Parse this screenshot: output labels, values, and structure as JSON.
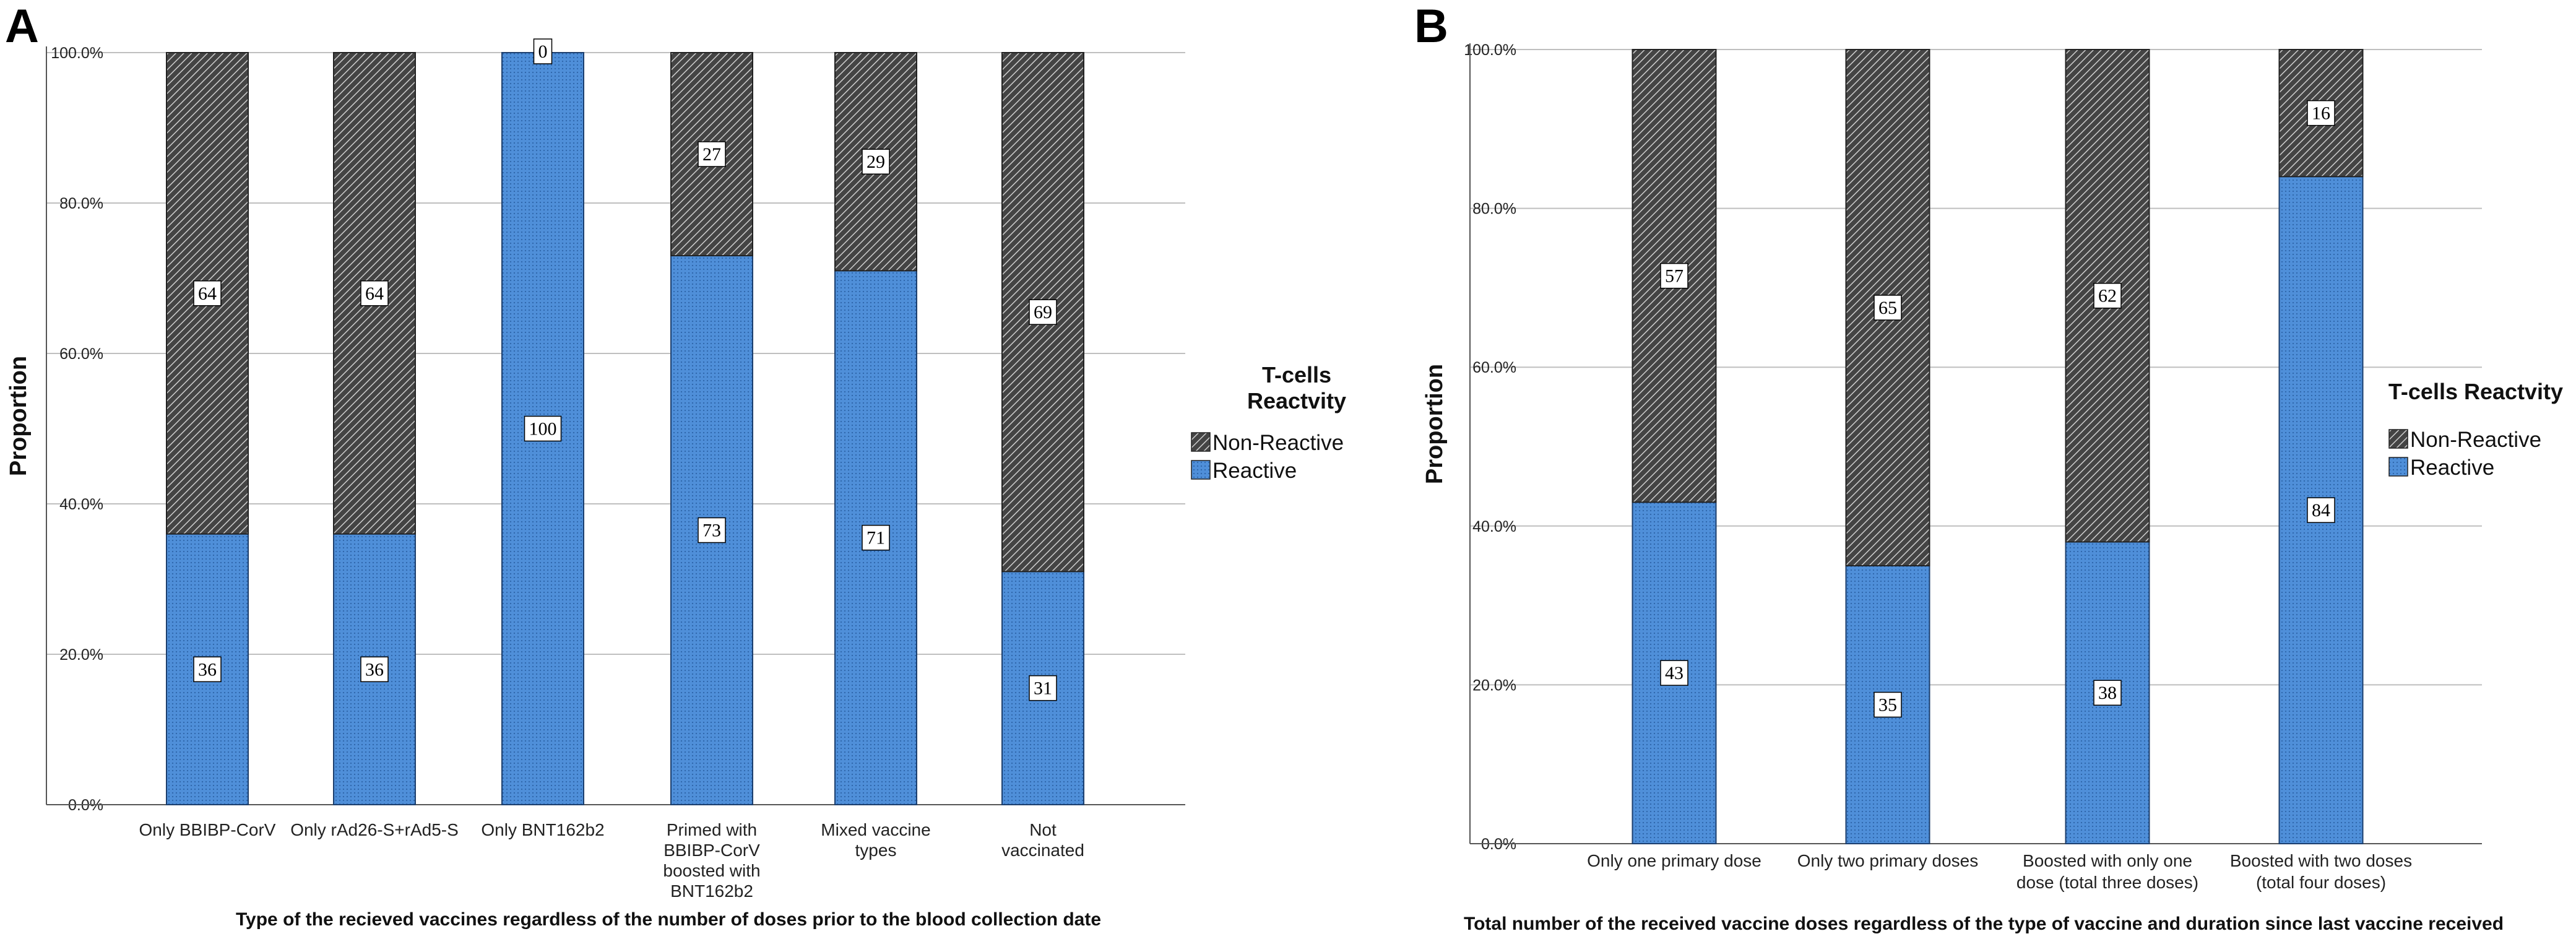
{
  "colors": {
    "reactive": "#4f8fd9",
    "reactive_dots": "#2d64a8",
    "non_reactive": "#444444",
    "non_reactive_lines": "#cfcfcf",
    "grid": "#bfbfbf",
    "axis": "#555555"
  },
  "chart_data": [
    {
      "panel": "A",
      "type": "bar",
      "stacked": true,
      "title": "",
      "xlabel": "Type of the recieved vaccines regardless of the number of doses prior to the blood collection date",
      "ylabel": "Proportion",
      "ylim": [
        0,
        100
      ],
      "yticks": [
        "0.0%",
        "20.0%",
        "40.0%",
        "60.0%",
        "80.0%",
        "100.0%"
      ],
      "categories": [
        [
          "Only BBIBP-CorV"
        ],
        [
          "Only rAd26-S+rAd5-S"
        ],
        [
          "Only BNT162b2"
        ],
        [
          "Primed with",
          "BBIBP-CorV",
          "boosted with",
          "BNT162b2"
        ],
        [
          "Mixed vaccine",
          "types"
        ],
        [
          "Not",
          "vaccinated"
        ]
      ],
      "series": [
        {
          "name": "Reactive",
          "values": [
            36,
            36,
            100,
            73,
            71,
            31
          ],
          "labels": [
            "36",
            "36",
            "100",
            "73",
            "71",
            "31"
          ]
        },
        {
          "name": "Non-Reactive",
          "values": [
            64,
            64,
            0,
            27,
            29,
            69
          ],
          "labels": [
            "64",
            "64",
            "0",
            "27",
            "29",
            "69"
          ]
        }
      ],
      "legend": {
        "title_lines": [
          "T-cells",
          "Reactvity"
        ],
        "position": "right",
        "items": [
          "Non-Reactive",
          "Reactive"
        ]
      }
    },
    {
      "panel": "B",
      "type": "bar",
      "stacked": true,
      "title": "",
      "xlabel": "Total number of the received vaccine doses regardless of the type of vaccine and duration since last vaccine received",
      "ylabel": "Proportion",
      "ylim": [
        0,
        100
      ],
      "yticks": [
        "0.0%",
        "20.0%",
        "40.0%",
        "60.0%",
        "80.0%",
        "100.0%"
      ],
      "categories": [
        [
          "Only one primary dose"
        ],
        [
          "Only two primary doses"
        ],
        [
          "Boosted with only one",
          "dose (total three doses)"
        ],
        [
          "Boosted with two doses",
          "(total four doses)"
        ]
      ],
      "series": [
        {
          "name": "Reactive",
          "values": [
            43,
            35,
            38,
            84
          ],
          "labels": [
            "43",
            "35",
            "38",
            "84"
          ]
        },
        {
          "name": "Non-Reactive",
          "values": [
            57,
            65,
            62,
            16
          ],
          "labels": [
            "57",
            "65",
            "62",
            "16"
          ]
        }
      ],
      "legend": {
        "title_lines": [
          "T-cells Reactvity"
        ],
        "position": "right",
        "items": [
          "Non-Reactive",
          "Reactive"
        ]
      }
    }
  ]
}
